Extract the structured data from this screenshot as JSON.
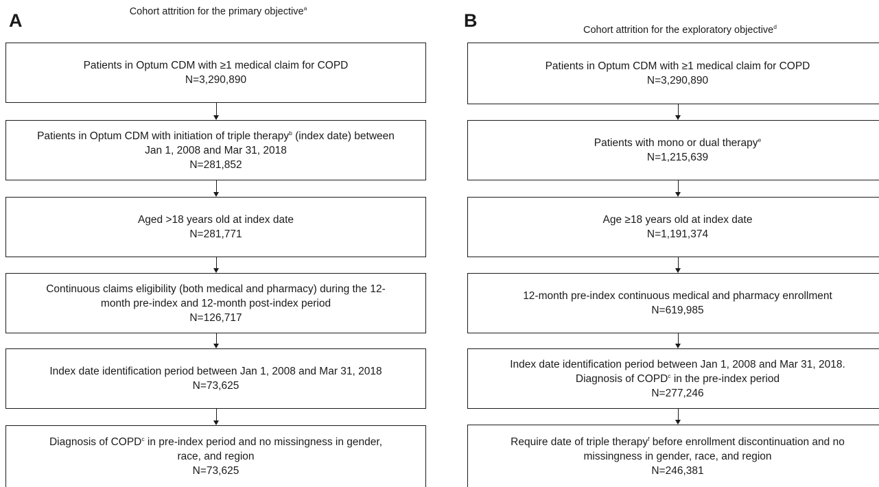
{
  "panels": [
    {
      "letter": "A",
      "title": {
        "text": "Cohort attrition for the primary objective",
        "sup": "a"
      },
      "boxes": [
        {
          "lines": [
            {
              "text": "Patients in Optum CDM with ≥1 medical claim for COPD"
            },
            {
              "text": "N=3,290,890"
            }
          ]
        },
        {
          "lines": [
            {
              "text": "Patients in Optum CDM with initiation of triple therapy",
              "sup": "b",
              "after": " (index date) between"
            },
            {
              "text": "Jan 1, 2008 and Mar 31, 2018"
            },
            {
              "text": "N=281,852"
            }
          ]
        },
        {
          "lines": [
            {
              "text": "Aged >18 years old at index date"
            },
            {
              "text": "N=281,771"
            }
          ]
        },
        {
          "lines": [
            {
              "text": "Continuous claims eligibility (both medical and pharmacy) during the 12-"
            },
            {
              "text": "month pre-index and 12-month post-index period"
            },
            {
              "text": "N=126,717"
            }
          ]
        },
        {
          "lines": [
            {
              "text": "Index date identification period between Jan 1, 2008 and Mar 31, 2018"
            },
            {
              "text": "N=73,625"
            }
          ]
        },
        {
          "lines": [
            {
              "text": "Diagnosis of COPD",
              "sup": "c",
              "after": " in pre-index period and no missingness in gender,"
            },
            {
              "text": "race, and region"
            },
            {
              "text": "N=73,625"
            }
          ]
        }
      ]
    },
    {
      "letter": "B",
      "title": {
        "text": "Cohort attrition for the exploratory objective",
        "sup": "d"
      },
      "boxes": [
        {
          "lines": [
            {
              "text": "Patients in Optum CDM with ≥1 medical claim for COPD"
            },
            {
              "text": "N=3,290,890"
            }
          ]
        },
        {
          "lines": [
            {
              "text": "Patients with mono or dual therapy",
              "sup": "e"
            },
            {
              "text": "N=1,215,639"
            }
          ]
        },
        {
          "lines": [
            {
              "text": "Age ≥18 years old at index date"
            },
            {
              "text": "N=1,191,374"
            }
          ]
        },
        {
          "lines": [
            {
              "text": "12-month pre-index continuous medical and pharmacy enrollment"
            },
            {
              "text": "N=619,985"
            }
          ]
        },
        {
          "lines": [
            {
              "text": "Index date identification period between Jan 1, 2008 and Mar 31, 2018."
            },
            {
              "text": "Diagnosis of COPD",
              "sup": "c",
              "after": " in the pre-index period"
            },
            {
              "text": "N=277,246"
            }
          ]
        },
        {
          "lines": [
            {
              "text": "Require date of triple therapy",
              "sup": "f",
              "after": " before enrollment discontinuation and no"
            },
            {
              "text": "missingness in gender, race, and region"
            },
            {
              "text": "N=246,381"
            }
          ]
        }
      ]
    }
  ]
}
